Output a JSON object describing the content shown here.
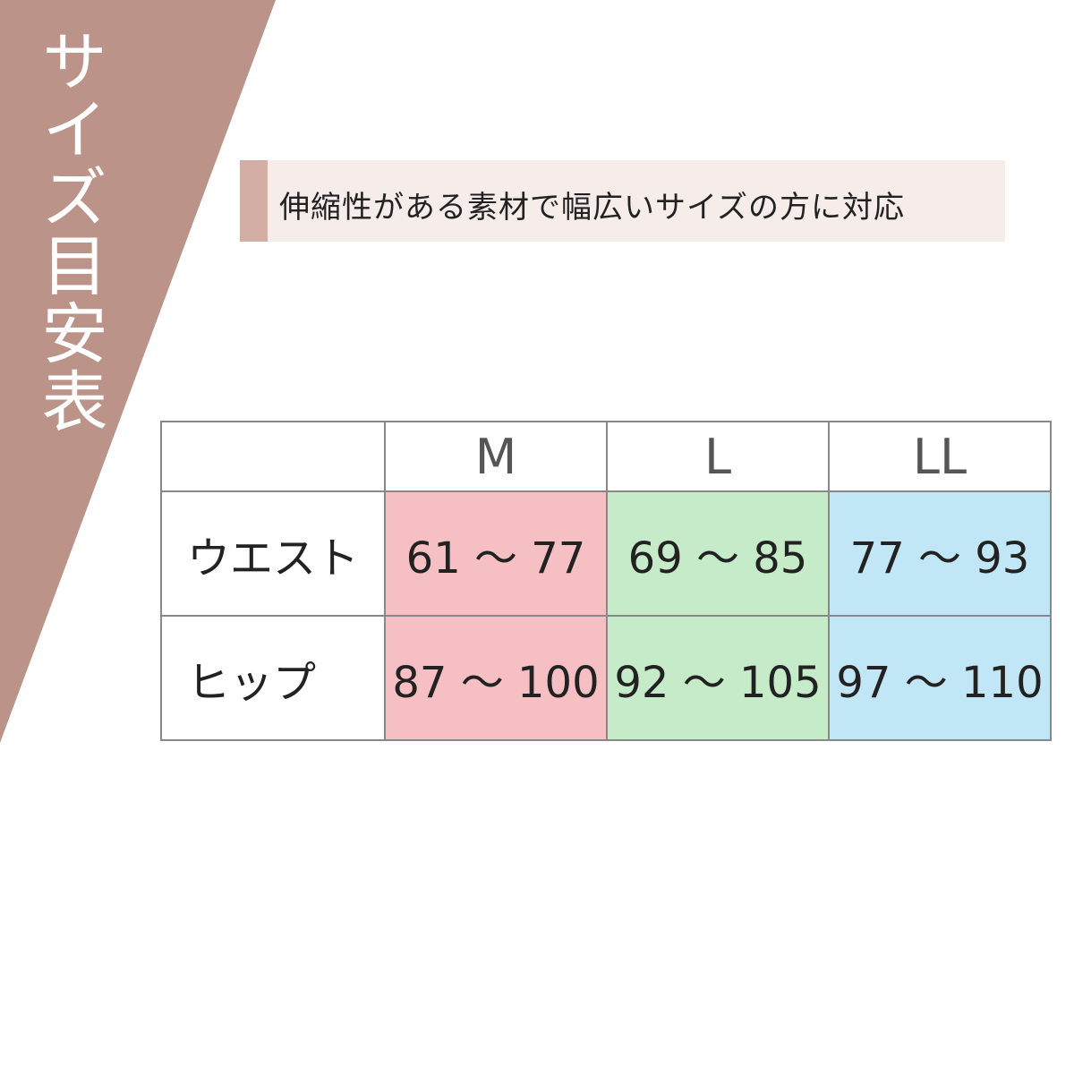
{
  "title": "サイズ目安表",
  "subtitle": "伸縮性がある素材で幅広いサイズの方に対応",
  "colors": {
    "band": "#bc9388",
    "accent": "#d3aea4",
    "M": "#f5bfc3",
    "L": "#c6ebc9",
    "LL": "#c1e6f5"
  },
  "table": {
    "headers": [
      "",
      "M",
      "L",
      "LL"
    ],
    "rows": [
      {
        "label": "ウエスト",
        "values": [
          "61 ～ 77",
          "69 ～ 85",
          "77 ～ 93"
        ]
      },
      {
        "label": "ヒップ",
        "values": [
          "87 ～ 100",
          "92 ～ 105",
          "97 ～ 110"
        ]
      }
    ]
  }
}
